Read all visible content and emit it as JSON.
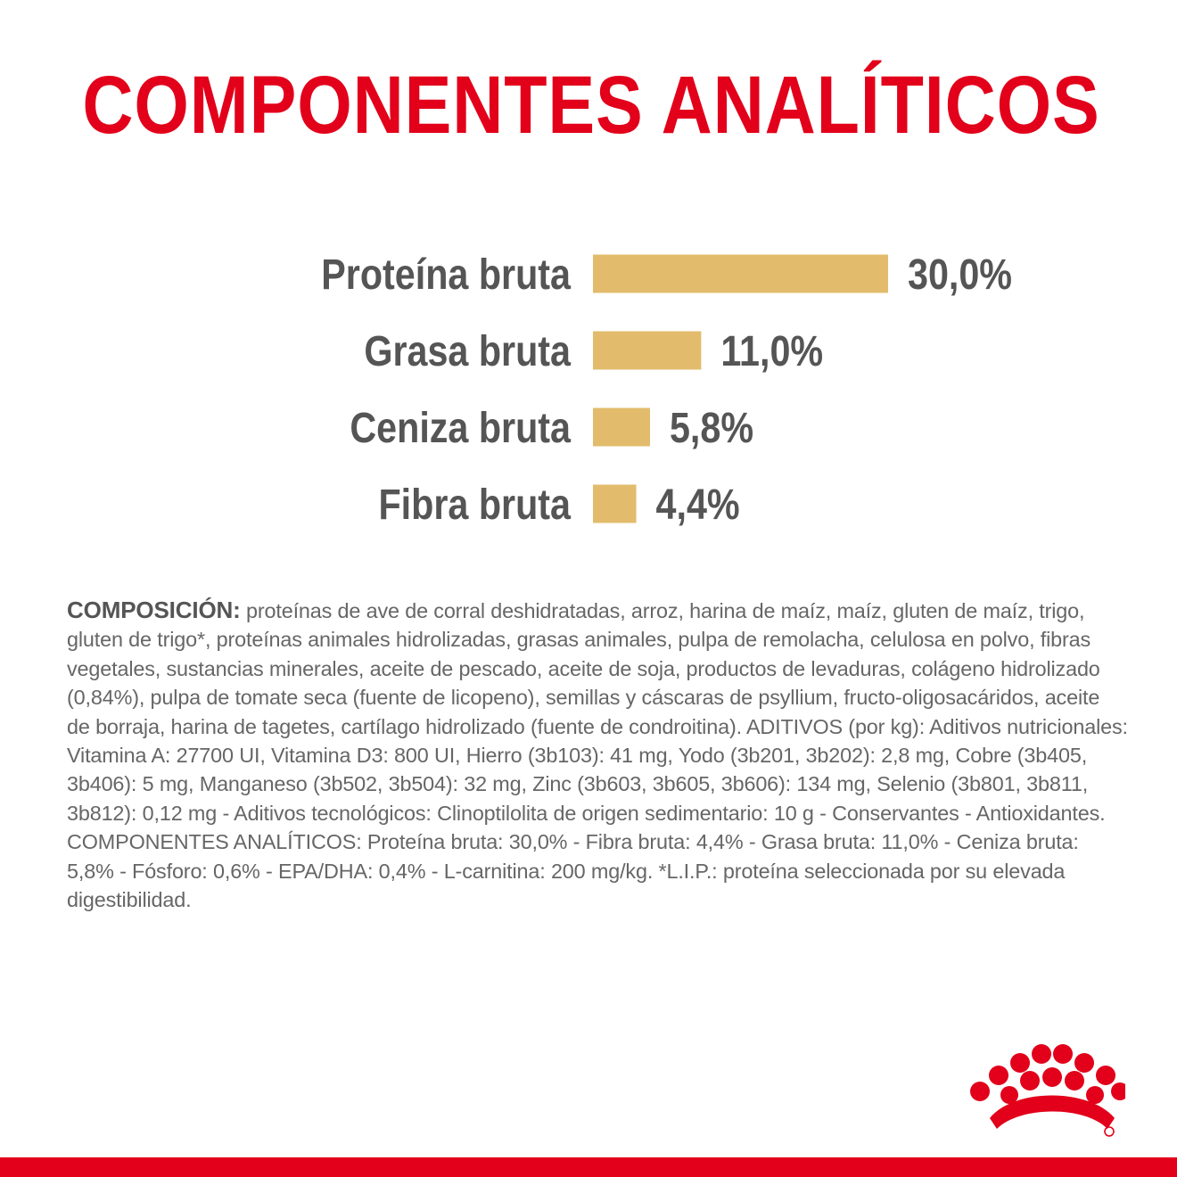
{
  "title": "COMPONENTES ANALÍTICOS",
  "chart_data": {
    "type": "bar",
    "orientation": "horizontal",
    "categories": [
      "Proteína bruta",
      "Grasa bruta",
      "Ceniza bruta",
      "Fibra bruta"
    ],
    "values": [
      30.0,
      11.0,
      5.8,
      4.4
    ],
    "value_labels": [
      "30,0%",
      "11,0%",
      "5,8%",
      "4,4%"
    ],
    "bar_color": "#e2bc6c",
    "grid": false,
    "legend": "none"
  },
  "composition": {
    "label": "COMPOSICIÓN:",
    "text": " proteínas de ave de corral deshidratadas, arroz, harina de maíz, maíz, gluten de maíz, trigo, gluten de trigo*, proteínas animales hidrolizadas, grasas animales, pulpa de remolacha, celulosa en polvo, fibras vegetales, sustancias minerales, aceite de pescado, aceite de soja, productos de levaduras, colágeno hidrolizado (0,84%), pulpa de tomate seca (fuente de licopeno), semillas y cáscaras de psyllium, fructo-oligosacáridos, aceite de borraja, harina de tagetes, cartílago hidrolizado (fuente de condroitina). ADITIVOS (por kg): Aditivos nutricionales: Vitamina A: 27700 UI, Vitamina D3: 800 UI, Hierro (3b103): 41 mg, Yodo (3b201, 3b202): 2,8 mg, Cobre (3b405, 3b406): 5 mg, Manganeso (3b502, 3b504): 32 mg, Zinc (3b603, 3b605, 3b606): 134 mg, Selenio (3b801, 3b811, 3b812): 0,12 mg - Aditivos tecnológicos: Clinoptilolita de origen sedimentario: 10 g - Conservantes - Antioxidantes. COMPONENTES ANALÍTICOS: Proteína bruta: 30,0% - Fibra bruta: 4,4% - Grasa bruta: 11,0% - Ceniza bruta: 5,8% - Fósforo: 0,6% - EPA/DHA: 0,4% - L-carnitina: 200 mg/kg. *L.I.P.: proteína seleccionada por su elevada digestibilidad."
  },
  "brand": {
    "logo_icon": "royal-canin-crown-icon",
    "accent_color": "#e2001a"
  }
}
